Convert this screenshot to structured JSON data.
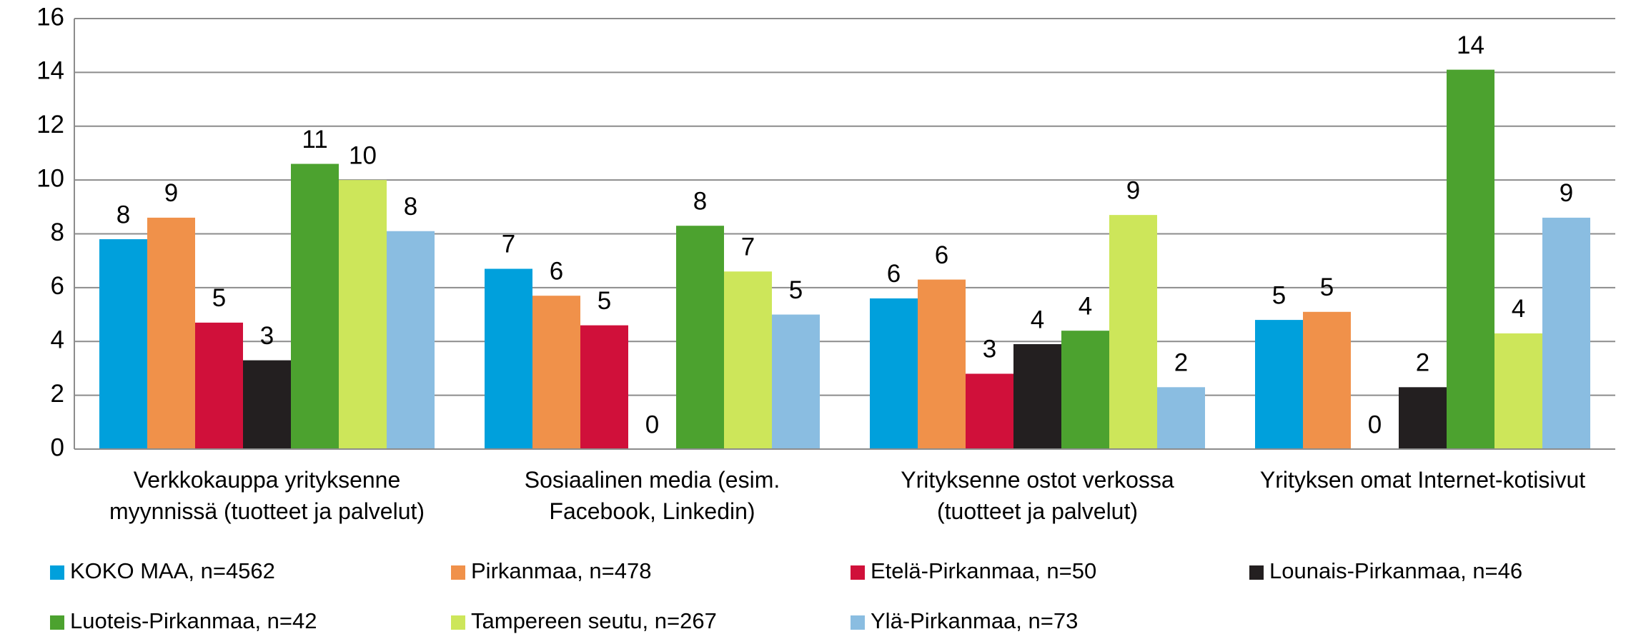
{
  "chart_data": {
    "type": "bar",
    "categories": [
      [
        "Verkkokauppa yrityksenne",
        "myynnissä (tuotteet ja palvelut)"
      ],
      [
        "Sosiaalinen media (esim.",
        "Facebook, Linkedin)"
      ],
      [
        "Yrityksenne ostot verkossa",
        "(tuotteet ja palvelut)"
      ],
      [
        "Yrityksen omat Internet-kotisivut"
      ]
    ],
    "series": [
      {
        "name": "KOKO MAA, n=4562",
        "color": "#00a0dc",
        "values": [
          7.8,
          6.7,
          5.6,
          4.8
        ],
        "value_labels": [
          "8",
          "7",
          "6",
          "5"
        ]
      },
      {
        "name": "Pirkanmaa, n=478",
        "color": "#f0914a",
        "values": [
          8.6,
          5.7,
          6.3,
          5.1
        ],
        "value_labels": [
          "9",
          "6",
          "6",
          "5"
        ]
      },
      {
        "name": "Etelä-Pirkanmaa, n=50",
        "color": "#d0103a",
        "values": [
          4.7,
          4.6,
          2.8,
          0
        ],
        "value_labels": [
          "5",
          "5",
          "3",
          "0"
        ]
      },
      {
        "name": "Lounais-Pirkanmaa, n=46",
        "color": "#231f20",
        "values": [
          3.3,
          0,
          3.9,
          2.3
        ],
        "value_labels": [
          "3",
          "0",
          "4",
          "2"
        ]
      },
      {
        "name": "Luoteis-Pirkanmaa, n=42",
        "color": "#4ca22f",
        "values": [
          10.6,
          8.3,
          4.4,
          14.1
        ],
        "value_labels": [
          "11",
          "8",
          "4",
          "14"
        ]
      },
      {
        "name": "Tampereen seutu, n=267",
        "color": "#cde65a",
        "values": [
          10.0,
          6.6,
          8.7,
          4.3
        ],
        "value_labels": [
          "10",
          "7",
          "9",
          "4"
        ]
      },
      {
        "name": "Ylä-Pirkanmaa, n=73",
        "color": "#8abde1",
        "values": [
          8.1,
          5.0,
          2.3,
          8.6
        ],
        "value_labels": [
          "8",
          "5",
          "2",
          "9"
        ]
      }
    ],
    "ylim": [
      0,
      16
    ],
    "yticks": [
      0,
      2,
      4,
      6,
      8,
      10,
      12,
      14,
      16
    ],
    "grid": true,
    "legend": "bottom"
  }
}
